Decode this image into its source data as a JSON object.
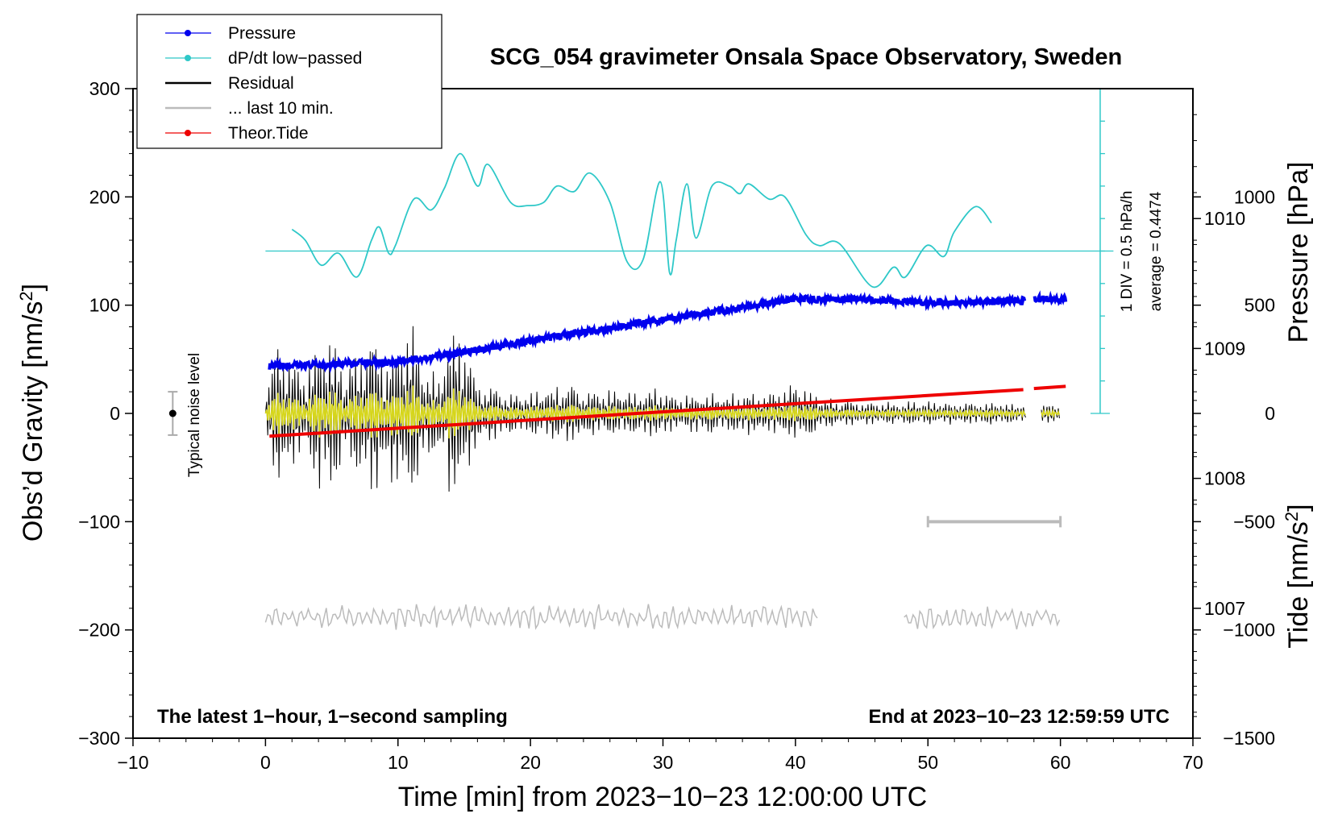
{
  "chart_data": {
    "type": "line",
    "title": "SCG_054 gravimeter Onsala Space Observatory, Sweden",
    "xlabel": "Time [min] from 2023−10−23 12:00:00 UTC",
    "ylabel_left": "Obs’d Gravity [nm/s",
    "ylabel_left_sup": "2",
    "ylabel_left_close": "]",
    "ylabel_pressure": "Pressure [hPa]",
    "ylabel_tide": "Tide [nm/s",
    "ylabel_tide_sup": "2",
    "ylabel_tide_close": "]",
    "xlim": [
      -10,
      70
    ],
    "ylim_gravity": [
      -300,
      300
    ],
    "ylim_pressure": [
      1006,
      1011
    ],
    "ylim_tide": [
      -1500,
      1500
    ],
    "x_ticks": [
      "−10",
      "0",
      "10",
      "20",
      "30",
      "40",
      "50",
      "60",
      "70"
    ],
    "x_tick_values": [
      -10,
      0,
      10,
      20,
      30,
      40,
      50,
      60,
      70
    ],
    "y_ticks_gravity": [
      "300",
      "200",
      "100",
      "0",
      "−100",
      "−200",
      "−300"
    ],
    "y_tick_values_gravity": [
      300,
      200,
      100,
      0,
      -100,
      -200,
      -300
    ],
    "y_ticks_pressure": [
      "1010",
      "1009",
      "1008",
      "1007"
    ],
    "y_tick_values_pressure": [
      1010,
      1009,
      1008,
      1007
    ],
    "y_ticks_tide": [
      "1000",
      "500",
      "0",
      "−500",
      "−1000",
      "−1500"
    ],
    "y_tick_values_tide": [
      1000,
      500,
      0,
      -500,
      -1000,
      -1500
    ],
    "legend": [
      {
        "label": "Pressure",
        "color": "#0000ee",
        "marker": true
      },
      {
        "label": "dP/dt low−passed",
        "color": "#2ec8c8",
        "marker": true
      },
      {
        "label": "Residual",
        "color": "#000000",
        "marker": false
      },
      {
        "label": "... last 10 min.",
        "color": "#bbbbbb",
        "marker": false
      },
      {
        "label": "Theor.Tide",
        "color": "#ee0000",
        "marker": true
      }
    ],
    "noise_label": "Typical noise level",
    "noise_range": [
      -20,
      20
    ],
    "dpdt_scale_label": "1 DIV = 0.5 hPa/h",
    "dpdt_average_label": "average = 0.4474",
    "footer_left": "The latest 1−hour, 1−second sampling",
    "footer_right": "End at 2023−10−23 12:59:59 UTC",
    "last10_bar_range_min": [
      50,
      60
    ],
    "last10_bar_gravity": -100,
    "pressure_series": {
      "name": "Pressure",
      "x": [
        0.3,
        5,
        10,
        15,
        20,
        25,
        30,
        35,
        40,
        45,
        50,
        55,
        57.3,
        58,
        60.4
      ],
      "y": [
        1008.86,
        1008.88,
        1008.9,
        1008.97,
        1009.06,
        1009.14,
        1009.22,
        1009.3,
        1009.38,
        1009.38,
        1009.35,
        1009.36,
        1009.37,
        1009.38,
        1009.38
      ],
      "gap": [
        57.3,
        58.0
      ]
    },
    "dpdt_series": {
      "name": "dP/dt low-passed",
      "baseline": 150,
      "x": [
        2,
        3,
        4.2,
        5.5,
        6.9,
        8,
        8.6,
        9.3,
        9.8,
        11.2,
        12.5,
        13.5,
        14.7,
        16,
        16.8,
        18.5,
        19.8,
        21,
        22,
        23.3,
        24.5,
        26,
        27.3,
        28.5,
        29.8,
        30.5,
        31,
        31.8,
        32.5,
        33.7,
        35,
        35.8,
        36.5,
        38,
        39.2,
        40.8,
        41.8,
        43.3,
        45.8,
        47.4,
        48.3,
        49.9,
        51.2,
        52,
        53.6,
        54.8
      ],
      "y": [
        170,
        160,
        137,
        148,
        126,
        160,
        172,
        148,
        155,
        198,
        188,
        208,
        240,
        210,
        230,
        195,
        192,
        195,
        210,
        205,
        222,
        195,
        140,
        142,
        214,
        130,
        160,
        212,
        162,
        210,
        210,
        203,
        212,
        198,
        200,
        165,
        155,
        157,
        117,
        135,
        126,
        155,
        145,
        168,
        191,
        176
      ]
    },
    "tide_series": {
      "name": "Theor.Tide",
      "x": [
        0.3,
        57.2,
        58.0,
        60.4
      ],
      "y": [
        -105,
        110,
        115,
        125
      ],
      "gap": [
        57.2,
        58.0
      ]
    },
    "residual_envelope": {
      "name": "Residual",
      "x": [
        0,
        1,
        2,
        3,
        4,
        5,
        6,
        7,
        8,
        9,
        10,
        11,
        12,
        13,
        14,
        15,
        16,
        17,
        18,
        19,
        20,
        21,
        22,
        23,
        24,
        25,
        26,
        27,
        28,
        29,
        30,
        31,
        32,
        33,
        34,
        35,
        36,
        37,
        38,
        39,
        40,
        41,
        42,
        43,
        44,
        45,
        46,
        47,
        48,
        49,
        50,
        51,
        52,
        53,
        54,
        55,
        56,
        57,
        58,
        59,
        60
      ],
      "amplitude": [
        30,
        75,
        58,
        40,
        80,
        88,
        45,
        70,
        90,
        62,
        78,
        96,
        55,
        38,
        92,
        80,
        35,
        30,
        24,
        20,
        22,
        26,
        28,
        32,
        26,
        22,
        24,
        25,
        21,
        26,
        24,
        18,
        20,
        22,
        20,
        18,
        22,
        20,
        20,
        25,
        30,
        26,
        18,
        14,
        14,
        12,
        12,
        12,
        11,
        12,
        12,
        12,
        10,
        12,
        11,
        12,
        10,
        10,
        10,
        10,
        10
      ],
      "gap": [
        57.4,
        58.5
      ]
    }
  }
}
